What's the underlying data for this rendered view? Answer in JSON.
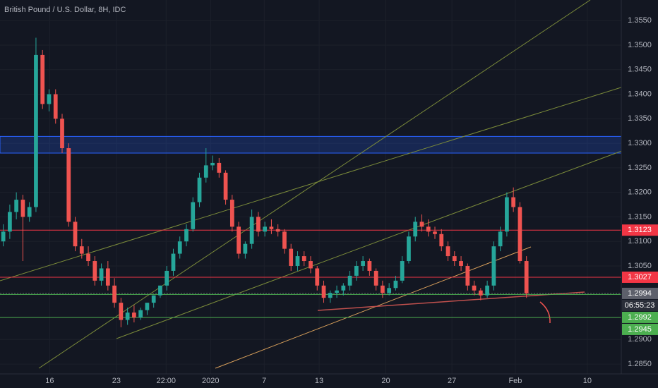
{
  "chart_data": {
    "type": "candlestick",
    "title": "British Pound / U.S. Dollar, 8H, IDC",
    "up_color": "#26a69a",
    "down_color": "#ef5350",
    "open": [
      1.31,
      1.312,
      1.316,
      1.3185,
      1.315,
      1.317,
      1.348,
      1.338,
      1.34,
      1.335,
      1.329,
      1.314,
      1.309,
      1.3075,
      1.306,
      1.302,
      1.3045,
      1.301,
      1.2975,
      1.294,
      1.2955,
      1.2945,
      1.296,
      1.2975,
      1.299,
      1.301,
      1.304,
      1.3075,
      1.31,
      1.3125,
      1.318,
      1.323,
      1.3255,
      1.326,
      1.324,
      1.3185,
      1.313,
      1.3075,
      1.3095,
      1.315,
      1.312,
      1.313,
      1.3125,
      1.312,
      1.3085,
      1.305,
      1.307,
      1.306,
      1.3045,
      1.301,
      1.2985,
      1.2995,
      1.3,
      1.301,
      1.303,
      1.305,
      1.306,
      1.304,
      1.301,
      1.2995,
      1.3005,
      1.302,
      1.306,
      1.311,
      1.314,
      1.313,
      1.312,
      1.3115,
      1.309,
      1.307,
      1.306,
      1.305,
      1.301,
      1.3,
      1.299,
      1.301,
      1.309,
      1.312,
      1.319,
      1.317,
      1.306
    ],
    "high": [
      1.3135,
      1.3175,
      1.32,
      1.3195,
      1.318,
      1.3515,
      1.349,
      1.341,
      1.341,
      1.336,
      1.33,
      1.315,
      1.3105,
      1.309,
      1.307,
      1.3055,
      1.306,
      1.3025,
      1.2985,
      1.2965,
      1.297,
      1.2965,
      1.2975,
      1.299,
      1.301,
      1.305,
      1.3085,
      1.311,
      1.3135,
      1.319,
      1.324,
      1.329,
      1.3275,
      1.327,
      1.3245,
      1.3195,
      1.314,
      1.31,
      1.3165,
      1.316,
      1.314,
      1.3145,
      1.3135,
      1.3125,
      1.3095,
      1.308,
      1.308,
      1.307,
      1.305,
      1.302,
      1.3,
      1.301,
      1.3015,
      1.304,
      1.306,
      1.307,
      1.3065,
      1.3045,
      1.302,
      1.3015,
      1.303,
      1.307,
      1.312,
      1.315,
      1.3155,
      1.3145,
      1.313,
      1.3125,
      1.31,
      1.308,
      1.307,
      1.3055,
      1.302,
      1.3005,
      1.302,
      1.31,
      1.313,
      1.32,
      1.321,
      1.318,
      1.307
    ],
    "low": [
      1.309,
      1.3105,
      1.3145,
      1.306,
      1.314,
      1.316,
      1.337,
      1.3365,
      1.334,
      1.328,
      1.313,
      1.308,
      1.3065,
      1.305,
      1.301,
      1.301,
      1.3,
      1.2965,
      1.2925,
      1.293,
      1.2935,
      1.294,
      1.295,
      1.2965,
      1.2985,
      1.3,
      1.303,
      1.3065,
      1.309,
      1.312,
      1.317,
      1.322,
      1.3245,
      1.323,
      1.3175,
      1.312,
      1.3065,
      1.3065,
      1.3085,
      1.311,
      1.311,
      1.3115,
      1.311,
      1.3075,
      1.304,
      1.304,
      1.305,
      1.3035,
      1.3,
      1.2975,
      1.2975,
      1.2985,
      1.299,
      1.3,
      1.302,
      1.304,
      1.303,
      1.3,
      1.2985,
      1.299,
      1.3,
      1.3015,
      1.3055,
      1.31,
      1.312,
      1.311,
      1.3105,
      1.308,
      1.306,
      1.305,
      1.304,
      1.3,
      1.299,
      1.298,
      1.2985,
      1.3,
      1.308,
      1.311,
      1.316,
      1.3055,
      1.2985
    ],
    "close": [
      1.312,
      1.316,
      1.3185,
      1.315,
      1.317,
      1.348,
      1.338,
      1.34,
      1.335,
      1.329,
      1.314,
      1.309,
      1.3075,
      1.306,
      1.302,
      1.3045,
      1.301,
      1.2975,
      1.294,
      1.2955,
      1.2945,
      1.296,
      1.2975,
      1.299,
      1.301,
      1.304,
      1.3075,
      1.31,
      1.3125,
      1.318,
      1.323,
      1.3255,
      1.326,
      1.324,
      1.3185,
      1.313,
      1.3075,
      1.3095,
      1.315,
      1.312,
      1.313,
      1.3125,
      1.312,
      1.3085,
      1.305,
      1.307,
      1.306,
      1.3045,
      1.301,
      1.2985,
      1.2995,
      1.3,
      1.301,
      1.303,
      1.305,
      1.306,
      1.304,
      1.301,
      1.2995,
      1.3005,
      1.302,
      1.306,
      1.311,
      1.314,
      1.313,
      1.312,
      1.3115,
      1.309,
      1.307,
      1.306,
      1.305,
      1.301,
      1.3,
      1.299,
      1.301,
      1.309,
      1.312,
      1.319,
      1.317,
      1.306,
      1.2994
    ],
    "xlim": [
      0,
      95
    ],
    "xticks": [
      {
        "value": 7.6,
        "label": "16"
      },
      {
        "value": 17.8,
        "label": "23"
      },
      {
        "value": 25.4,
        "label": "22:00"
      },
      {
        "value": 32.2,
        "label": "2020"
      },
      {
        "value": 40.4,
        "label": "7"
      },
      {
        "value": 48.8,
        "label": "13"
      },
      {
        "value": 59,
        "label": "20"
      },
      {
        "value": 69.1,
        "label": "27"
      },
      {
        "value": 78.8,
        "label": "Feb"
      },
      {
        "value": 89.8,
        "label": "10"
      }
    ],
    "ylim": [
      1.283,
      1.3592
    ],
    "yticks": [
      {
        "value": 1.285,
        "label": "1.2850"
      },
      {
        "value": 1.29,
        "label": "1.2900"
      },
      {
        "value": 1.305,
        "label": "1.3050"
      },
      {
        "value": 1.31,
        "label": "1.3100"
      },
      {
        "value": 1.315,
        "label": "1.3150"
      },
      {
        "value": 1.32,
        "label": "1.3200"
      },
      {
        "value": 1.325,
        "label": "1.3250"
      },
      {
        "value": 1.33,
        "label": "1.3300"
      },
      {
        "value": 1.335,
        "label": "1.3350"
      },
      {
        "value": 1.34,
        "label": "1.3400"
      },
      {
        "value": 1.345,
        "label": "1.3450"
      },
      {
        "value": 1.35,
        "label": "1.3500"
      },
      {
        "value": 1.355,
        "label": "1.3550"
      }
    ],
    "levels": [
      {
        "value": 1.3123,
        "color": "#f23645"
      },
      {
        "value": 1.3027,
        "color": "#f23645"
      },
      {
        "value": 1.2994,
        "color": "#5d606b"
      },
      {
        "value": 1.2992,
        "color": "#4caf50"
      },
      {
        "value": 1.2945,
        "color": "#4caf50"
      }
    ],
    "countdown": "06:55:23",
    "zone": [
      1.328,
      1.3314
    ]
  }
}
